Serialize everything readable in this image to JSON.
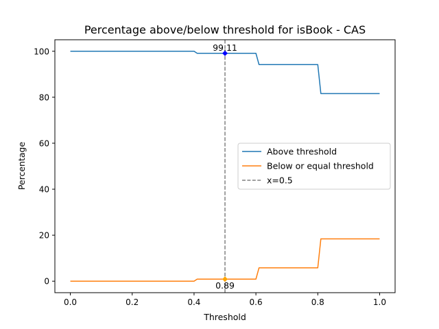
{
  "chart_data": {
    "type": "line",
    "title": "Percentage above/below threshold for isBook - CAS",
    "xlabel": "Threshold",
    "ylabel": "Percentage",
    "xlim": [
      -0.05,
      1.05
    ],
    "ylim": [
      -5,
      105
    ],
    "xticks": [
      0.0,
      0.2,
      0.4,
      0.6,
      0.8,
      1.0
    ],
    "xtick_labels": [
      "0.0",
      "0.2",
      "0.4",
      "0.6",
      "0.8",
      "1.0"
    ],
    "yticks": [
      0,
      20,
      40,
      60,
      80,
      100
    ],
    "ytick_labels": [
      "0",
      "20",
      "40",
      "60",
      "80",
      "100"
    ],
    "grid": false,
    "legend_position": "center-right",
    "series": [
      {
        "name": "Above threshold",
        "color": "#1f77b4",
        "x": [
          0.0,
          0.4,
          0.41,
          0.6,
          0.61,
          0.8,
          0.81,
          1.0
        ],
        "y": [
          100.0,
          100.0,
          99.11,
          99.11,
          94.2,
          94.2,
          81.6,
          81.6
        ]
      },
      {
        "name": "Below or equal threshold",
        "color": "#ff7f0e",
        "x": [
          0.0,
          0.4,
          0.41,
          0.6,
          0.61,
          0.8,
          0.81,
          1.0
        ],
        "y": [
          0.0,
          0.0,
          0.89,
          0.89,
          5.8,
          5.8,
          18.4,
          18.4
        ]
      }
    ],
    "vline": {
      "x": 0.5,
      "label": "x=0.5",
      "color": "#808080"
    },
    "annotations": [
      {
        "text": "99.11",
        "x": 0.5,
        "y": 99.11,
        "marker_color": "#0000ff",
        "position": "above"
      },
      {
        "text": "0.89",
        "x": 0.5,
        "y": 0.89,
        "marker_color": "#ffa500",
        "position": "below"
      }
    ]
  }
}
